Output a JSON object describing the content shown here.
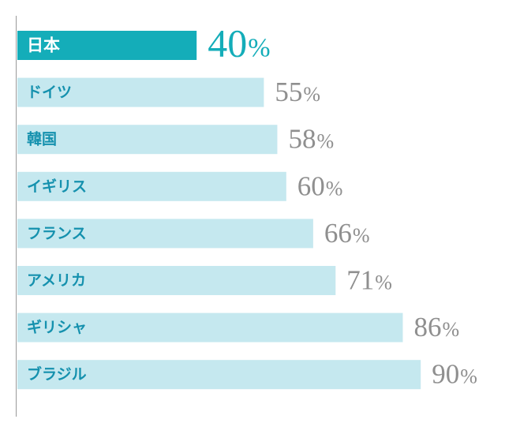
{
  "chart_data": {
    "type": "bar",
    "orientation": "horizontal",
    "categories": [
      "日本",
      "ドイツ",
      "韓国",
      "イギリス",
      "フランス",
      "アメリカ",
      "ギリシャ",
      "ブラジル"
    ],
    "values": [
      40,
      55,
      58,
      60,
      66,
      71,
      86,
      90
    ],
    "value_suffix": "%",
    "value_labels": [
      "40",
      "55",
      "58",
      "60",
      "66",
      "71",
      "86",
      "90"
    ],
    "highlight_category": "日本",
    "title": "",
    "xlabel": "",
    "ylabel": "",
    "xlim": [
      0,
      100
    ],
    "grid": false,
    "legend": "none",
    "colors": {
      "highlight_bar": "#14adb9",
      "highlight_label_text": "#ffffff",
      "highlight_value_text": "#14adb9",
      "bar": "#c5e8ef",
      "label_text": "#1591ae",
      "value_text": "#8f8f8f",
      "axis": "#999999"
    }
  }
}
